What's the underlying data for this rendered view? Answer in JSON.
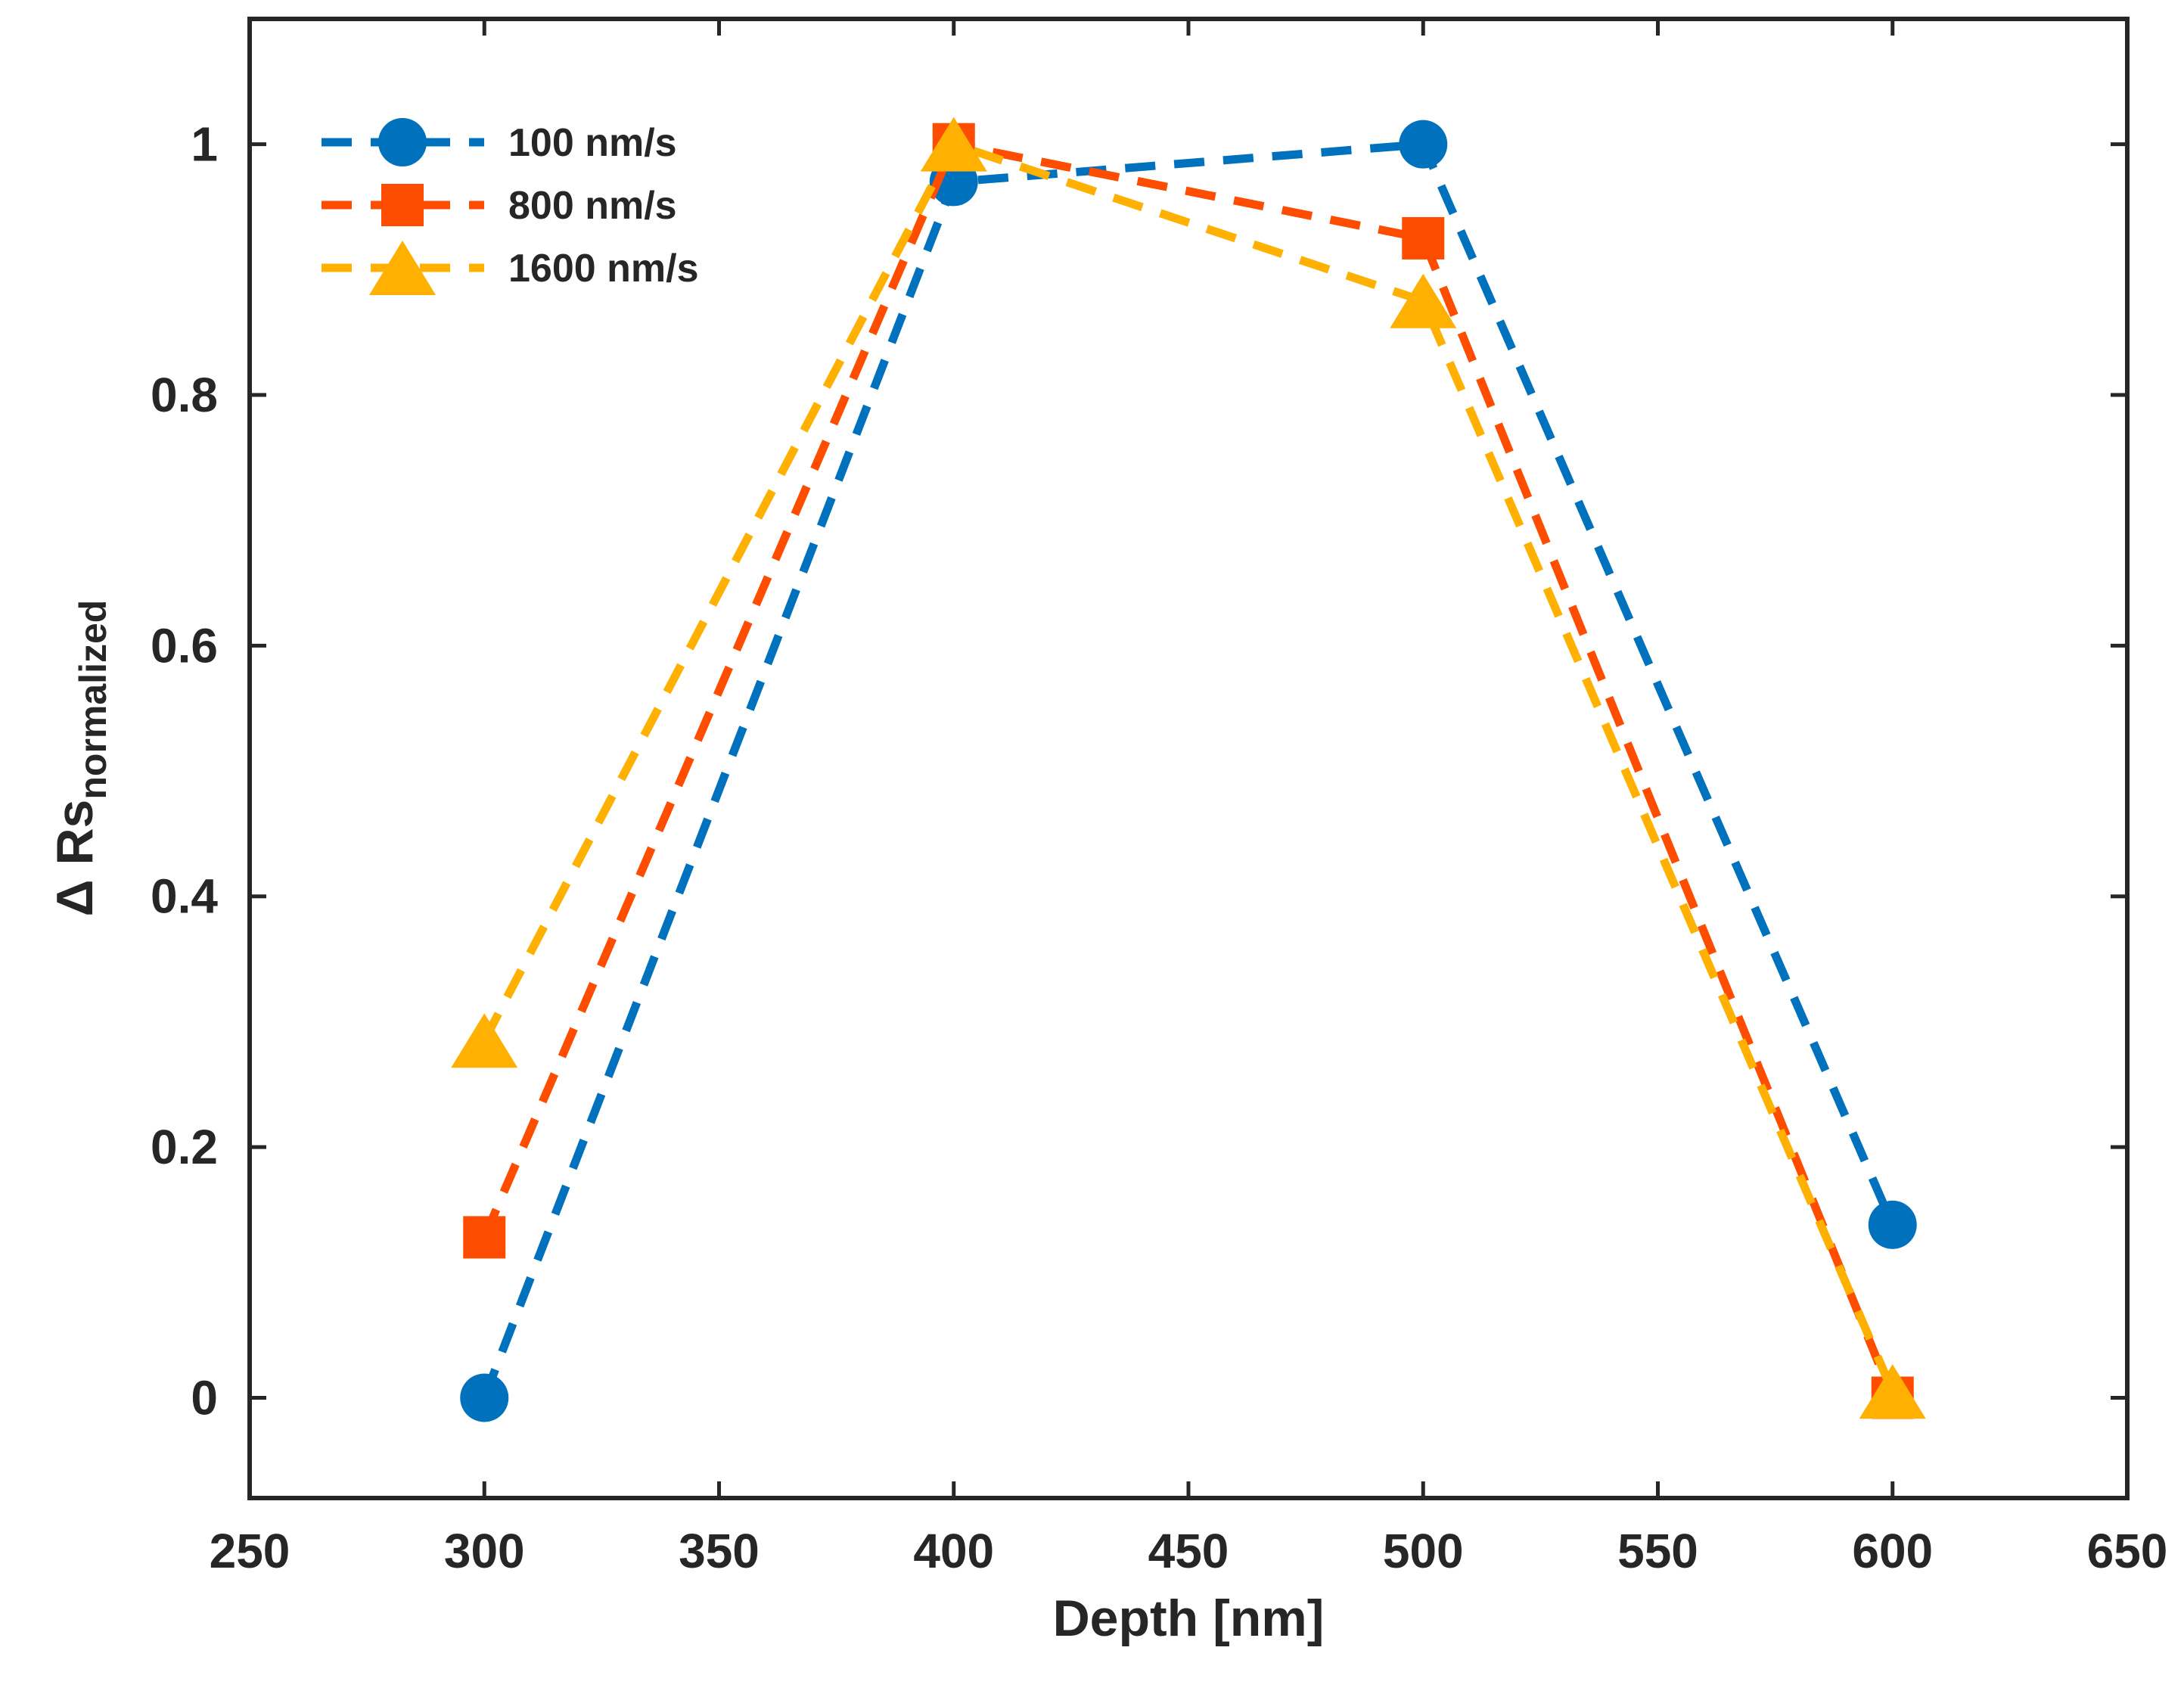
{
  "chart_data": {
    "type": "line",
    "title": "",
    "xlabel": "Depth [nm]",
    "ylabel_prefix": "Δ Rs",
    "ylabel_subscript": "normalized",
    "xlim": [
      250,
      650
    ],
    "ylim": [
      -0.08,
      1.1
    ],
    "xticks": [
      250,
      300,
      350,
      400,
      450,
      500,
      550,
      600,
      650
    ],
    "xtick_labels": [
      "250",
      "300",
      "350",
      "400",
      "450",
      "500",
      "550",
      "600",
      "650"
    ],
    "yticks": [
      0,
      0.2,
      0.4,
      0.6,
      0.8,
      1
    ],
    "ytick_labels": [
      "0",
      "0.2",
      "0.4",
      "0.6",
      "0.8",
      "1"
    ],
    "grid": false,
    "legend_position": "top-left",
    "x": [
      300,
      400,
      500,
      600
    ],
    "series": [
      {
        "name": "100 nm/s",
        "values": [
          0,
          0.97,
          1.0,
          0.138
        ],
        "color": "#0072BD",
        "marker": "circle"
      },
      {
        "name": "800 nm/s",
        "values": [
          0.128,
          1.0,
          0.925,
          0.0
        ],
        "color": "#FF4D00",
        "marker": "square"
      },
      {
        "name": "1600 nm/s",
        "values": [
          0.285,
          1.0,
          0.875,
          0.005
        ],
        "color": "#FFB000",
        "marker": "triangle"
      }
    ]
  }
}
